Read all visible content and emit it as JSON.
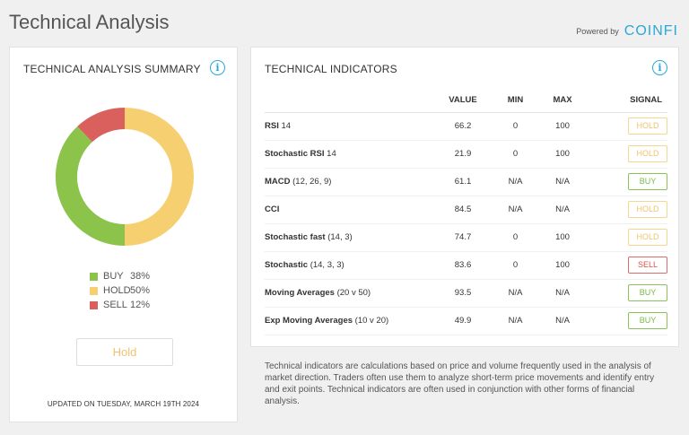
{
  "page_title": "Technical Analysis",
  "powered_by": {
    "label": "Powered by",
    "brand": "COINFI"
  },
  "summary": {
    "title": "TECHNICAL ANALYSIS SUMMARY",
    "info_icon": "i",
    "breakdown": [
      {
        "label": "BUY",
        "value_text": "38%",
        "percent": 38,
        "color": "#8cc34b"
      },
      {
        "label": "HOLD",
        "value_text": "50%",
        "percent": 50,
        "color": "#f6cf70"
      },
      {
        "label": "SELL",
        "value_text": "12%",
        "percent": 12,
        "color": "#d9605d"
      }
    ],
    "verdict": "Hold",
    "updated": "UPDATED ON TUESDAY, MARCH 19TH 2024"
  },
  "indicators": {
    "title": "TECHNICAL INDICATORS",
    "info_icon": "i",
    "columns": {
      "value": "VALUE",
      "min": "MIN",
      "max": "MAX",
      "signal": "SIGNAL"
    },
    "rows": [
      {
        "name": "RSI",
        "params": "14",
        "value": "66.2",
        "min": "0",
        "max": "100",
        "signal": "HOLD"
      },
      {
        "name": "Stochastic RSI",
        "params": "14",
        "value": "21.9",
        "min": "0",
        "max": "100",
        "signal": "HOLD"
      },
      {
        "name": "MACD",
        "params": "(12, 26, 9)",
        "value": "61.1",
        "min": "N/A",
        "max": "N/A",
        "signal": "BUY"
      },
      {
        "name": "CCI",
        "params": "",
        "value": "84.5",
        "min": "N/A",
        "max": "N/A",
        "signal": "HOLD"
      },
      {
        "name": "Stochastic fast",
        "params": "(14, 3)",
        "value": "74.7",
        "min": "0",
        "max": "100",
        "signal": "HOLD"
      },
      {
        "name": "Stochastic",
        "params": "(14, 3, 3)",
        "value": "83.6",
        "min": "0",
        "max": "100",
        "signal": "SELL"
      },
      {
        "name": "Moving Averages",
        "params": "(20 v 50)",
        "value": "93.5",
        "min": "N/A",
        "max": "N/A",
        "signal": "BUY"
      },
      {
        "name": "Exp Moving Averages",
        "params": "(10 v 20)",
        "value": "49.9",
        "min": "N/A",
        "max": "N/A",
        "signal": "BUY"
      }
    ]
  },
  "description": "Technical indicators are calculations based on price and volume frequently used in the analysis of market direction. Traders often use them to analyze short-term price movements and identify entry and exit points. Technical indicators are often used in conjunction with other forms of financial analysis."
}
